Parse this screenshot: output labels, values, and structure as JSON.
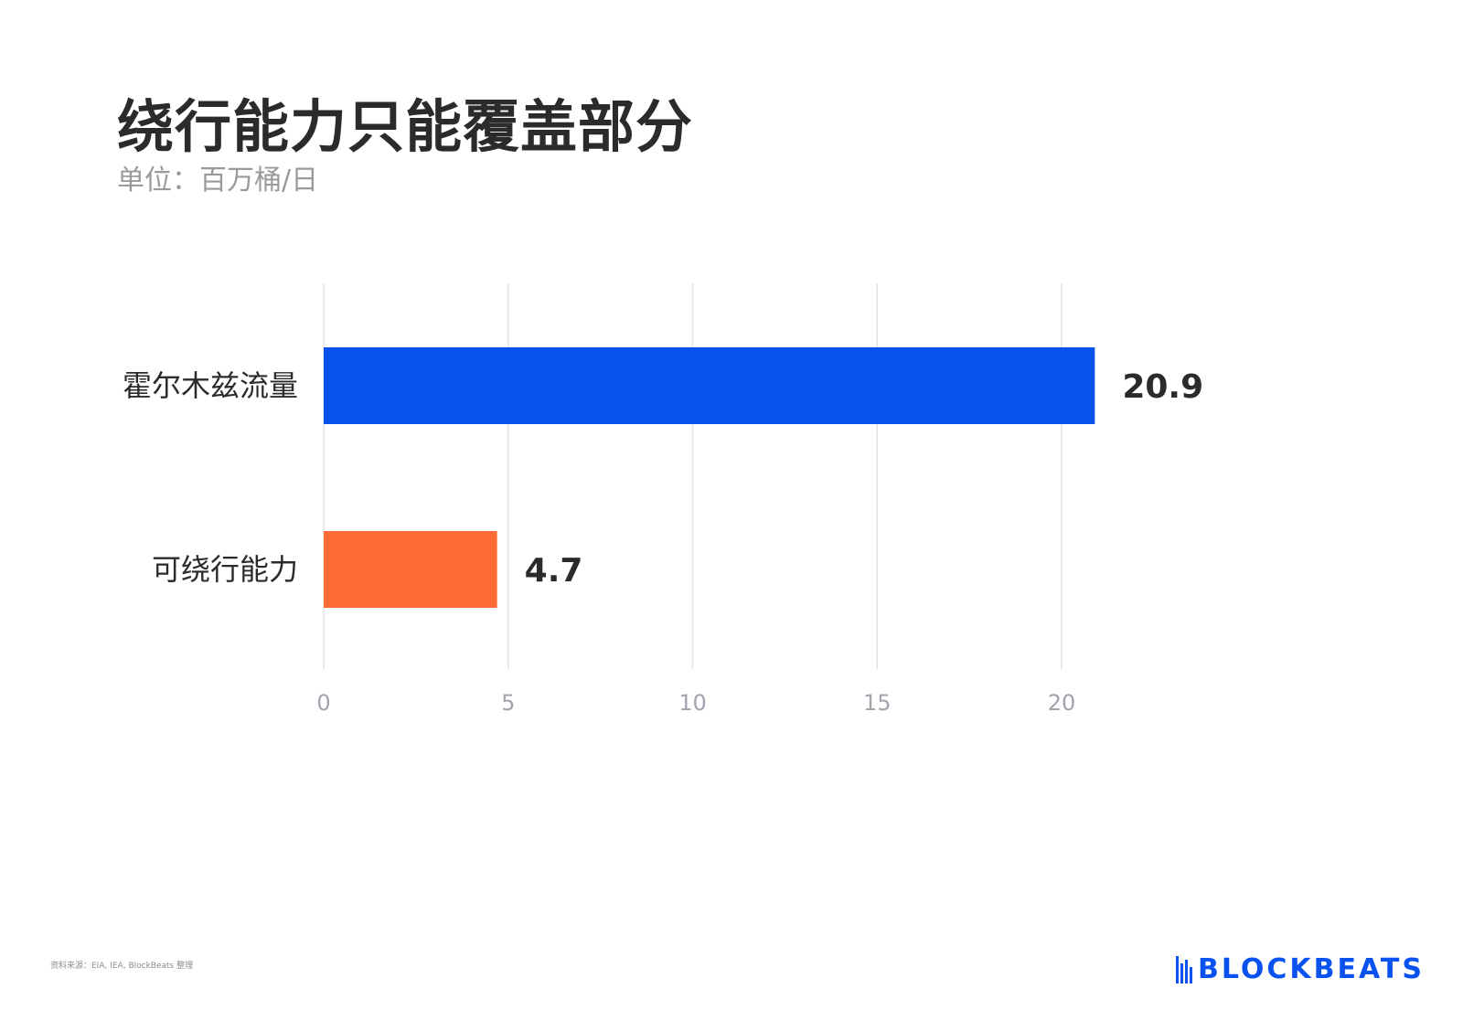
{
  "chart_data": {
    "type": "bar",
    "orientation": "horizontal",
    "title": "绕行能力只能覆盖部分",
    "subtitle": "单位：百万桶/日",
    "categories": [
      "霍尔木兹流量",
      "可绕行能力"
    ],
    "values": [
      20.9,
      4.7
    ],
    "value_labels": [
      "20.9",
      "4.7"
    ],
    "colors": [
      "#0a52f0",
      "#ff6b35"
    ],
    "xlim": [
      0,
      20
    ],
    "xticks": [
      0,
      5,
      10,
      15,
      20
    ],
    "xtick_labels": [
      "0",
      "5",
      "10",
      "15",
      "20"
    ],
    "grid": true,
    "legend": "none"
  },
  "footer": {
    "source": "资料来源：EIA, IEA, BlockBeats 整理",
    "logo_text": "BLOCKBEATS",
    "logo_icon": "blockbeats-logo-icon"
  }
}
